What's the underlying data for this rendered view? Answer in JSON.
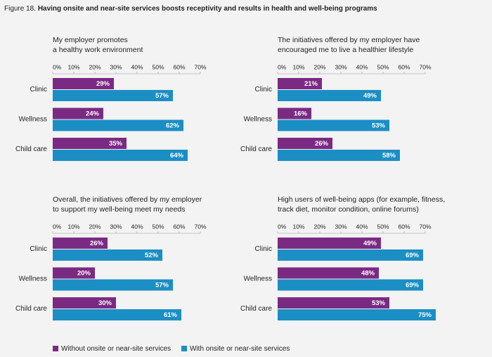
{
  "figure_label": "Figure 18.",
  "title": "Having onsite and near-site services boosts receptivity and results in health and well-being programs",
  "chart_data": [
    {
      "type": "bar",
      "orientation": "horizontal",
      "title": [
        "My employer promotes",
        "a healthy work environment"
      ],
      "categories": [
        "Clinic",
        "Wellness",
        "Child care"
      ],
      "series": [
        {
          "name": "Without onsite or near-site services",
          "color": "#7b2a83",
          "values": [
            29,
            24,
            35
          ],
          "value_labels": [
            "29%",
            "24%",
            "35%"
          ]
        },
        {
          "name": "With onsite or near-site services",
          "color": "#1b8ec4",
          "values": [
            57,
            62,
            64
          ],
          "value_labels": [
            "57%",
            "62%",
            "64%"
          ]
        }
      ],
      "xlim": [
        0,
        70
      ],
      "xticks": [
        {
          "value": 0,
          "label": "0%"
        },
        {
          "value": 10,
          "label": "10%"
        },
        {
          "value": 20,
          "label": "20%"
        },
        {
          "value": 30,
          "label": "30%"
        },
        {
          "value": 40,
          "label": "40%"
        },
        {
          "value": 50,
          "label": "50%"
        },
        {
          "value": 60,
          "label": "60%"
        },
        {
          "value": 70,
          "label": "70%"
        }
      ]
    },
    {
      "type": "bar",
      "orientation": "horizontal",
      "title": [
        "The initiatives offered by my employer have",
        "encouraged me to live a healthier lifestyle"
      ],
      "categories": [
        "Clinic",
        "Wellness",
        "Child care"
      ],
      "series": [
        {
          "name": "Without onsite or near-site services",
          "color": "#7b2a83",
          "values": [
            21,
            16,
            26
          ],
          "value_labels": [
            "21%",
            "16%",
            "26%"
          ]
        },
        {
          "name": "With onsite or near-site services",
          "color": "#1b8ec4",
          "values": [
            49,
            53,
            58
          ],
          "value_labels": [
            "49%",
            "53%",
            "58%"
          ]
        }
      ],
      "xlim": [
        0,
        70
      ],
      "xticks": [
        {
          "value": 0,
          "label": "0%"
        },
        {
          "value": 10,
          "label": "10%"
        },
        {
          "value": 20,
          "label": "20%"
        },
        {
          "value": 30,
          "label": "30%"
        },
        {
          "value": 40,
          "label": "40%"
        },
        {
          "value": 50,
          "label": "50%"
        },
        {
          "value": 60,
          "label": "60%"
        },
        {
          "value": 70,
          "label": "70%"
        }
      ]
    },
    {
      "type": "bar",
      "orientation": "horizontal",
      "title": [
        "Overall, the initiatives offered by my employer",
        "to support my well-being meet my needs"
      ],
      "categories": [
        "Clinic",
        "Wellness",
        "Child care"
      ],
      "series": [
        {
          "name": "Without onsite or near-site services",
          "color": "#7b2a83",
          "values": [
            26,
            20,
            30
          ],
          "value_labels": [
            "26%",
            "20%",
            "30%"
          ]
        },
        {
          "name": "With onsite or near-site services",
          "color": "#1b8ec4",
          "values": [
            52,
            57,
            61
          ],
          "value_labels": [
            "52%",
            "57%",
            "61%"
          ]
        }
      ],
      "xlim": [
        0,
        70
      ],
      "xticks": [
        {
          "value": 0,
          "label": "0%"
        },
        {
          "value": 10,
          "label": "10%"
        },
        {
          "value": 20,
          "label": "20%"
        },
        {
          "value": 30,
          "label": "30%"
        },
        {
          "value": 40,
          "label": "40%"
        },
        {
          "value": 50,
          "label": "50%"
        },
        {
          "value": 60,
          "label": "60%"
        },
        {
          "value": 70,
          "label": "70%"
        }
      ]
    },
    {
      "type": "bar",
      "orientation": "horizontal",
      "title": [
        "High users of well-being apps (for example, fitness,",
        "track diet, monitor condition, online forums)"
      ],
      "categories": [
        "Clinic",
        "Wellness",
        "Child care"
      ],
      "series": [
        {
          "name": "Without onsite or near-site services",
          "color": "#7b2a83",
          "values": [
            49,
            48,
            53
          ],
          "value_labels": [
            "49%",
            "48%",
            "53%"
          ]
        },
        {
          "name": "With onsite or near-site services",
          "color": "#1b8ec4",
          "values": [
            69,
            69,
            75
          ],
          "value_labels": [
            "69%",
            "69%",
            "75%"
          ]
        }
      ],
      "xlim": [
        0,
        70
      ],
      "xticks": [
        {
          "value": 0,
          "label": "0%"
        },
        {
          "value": 10,
          "label": "10%"
        },
        {
          "value": 20,
          "label": "20%"
        },
        {
          "value": 30,
          "label": "30%"
        },
        {
          "value": 40,
          "label": "40%"
        },
        {
          "value": 50,
          "label": "50%"
        },
        {
          "value": 60,
          "label": "60%"
        },
        {
          "value": 70,
          "label": "70%"
        }
      ]
    }
  ]
}
